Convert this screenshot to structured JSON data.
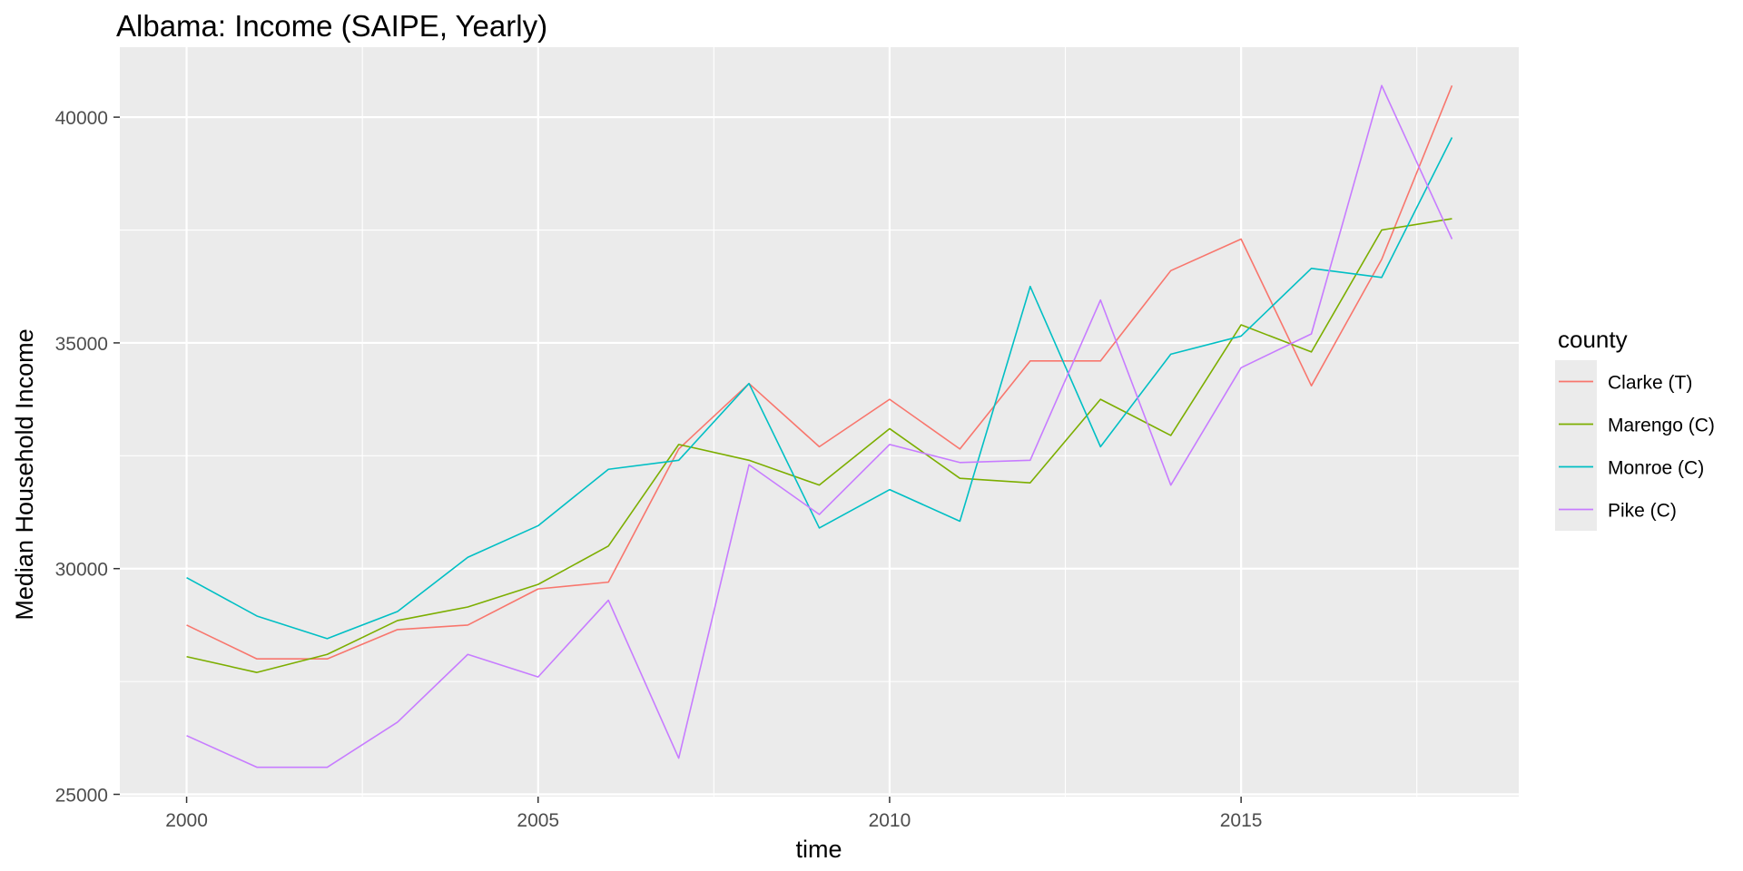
{
  "chart_data": {
    "type": "line",
    "title": "Albama: Income (SAIPE, Yearly)",
    "xlabel": "time",
    "ylabel": "Median Household Income",
    "x": [
      2000,
      2001,
      2002,
      2003,
      2004,
      2005,
      2006,
      2007,
      2008,
      2009,
      2010,
      2011,
      2012,
      2013,
      2014,
      2015,
      2016,
      2017,
      2018
    ],
    "x_ticks": [
      2000,
      2005,
      2010,
      2015
    ],
    "y_ticks": [
      25000,
      30000,
      35000,
      40000
    ],
    "xlim": [
      1999.05,
      2018.95
    ],
    "ylim": [
      24950,
      41550
    ],
    "grid": true,
    "legend": {
      "title": "county",
      "position": "right"
    },
    "series": [
      {
        "name": "Clarke (T)",
        "color": "#F8766D",
        "values": [
          28750,
          28000,
          28000,
          28650,
          28750,
          29550,
          29700,
          32650,
          34100,
          32700,
          33750,
          32650,
          34600,
          34600,
          36600,
          37300,
          34050,
          36850,
          40700
        ]
      },
      {
        "name": "Marengo (C)",
        "color": "#7CAE00",
        "values": [
          28050,
          27700,
          28100,
          28850,
          29150,
          29650,
          30500,
          32750,
          32400,
          31850,
          33100,
          32000,
          31900,
          33750,
          32950,
          35400,
          34800,
          37500,
          37750
        ]
      },
      {
        "name": "Monroe (C)",
        "color": "#00BFC4",
        "values": [
          29800,
          28950,
          28450,
          29050,
          30250,
          30950,
          32200,
          32400,
          34100,
          30900,
          31750,
          31050,
          36250,
          32700,
          34750,
          35150,
          36650,
          36450,
          39550
        ]
      },
      {
        "name": "Pike (C)",
        "color": "#C77CFF",
        "values": [
          26300,
          25600,
          25600,
          26600,
          28100,
          27600,
          29300,
          25800,
          32300,
          31200,
          32750,
          32350,
          32400,
          35950,
          31850,
          34450,
          35200,
          40700,
          37300
        ]
      }
    ]
  }
}
